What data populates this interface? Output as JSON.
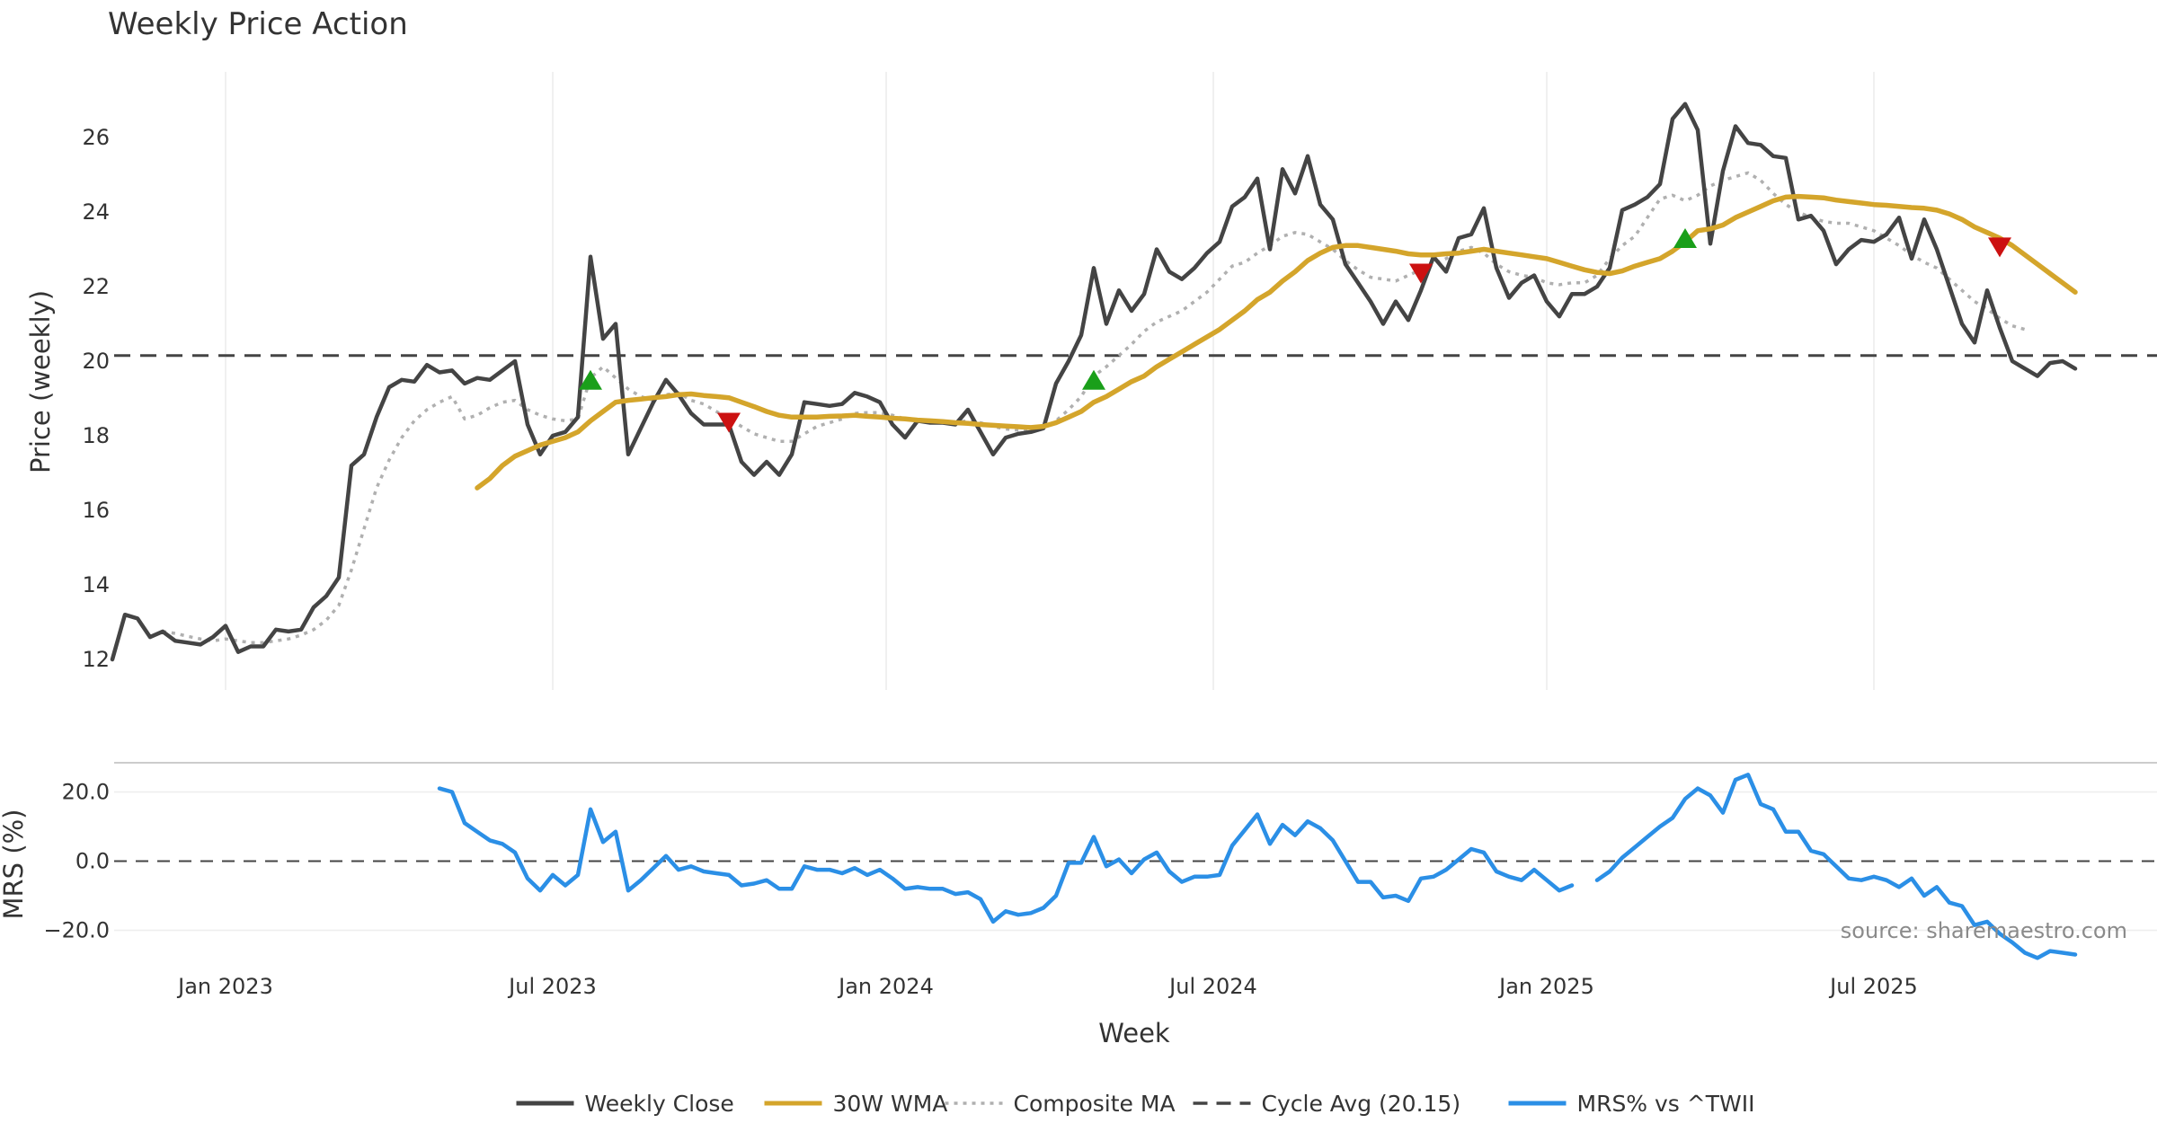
{
  "chart_data": [
    {
      "type": "line",
      "title": "Weekly Price Action",
      "ylabel": "Price (weekly)",
      "ylim": [
        11.7,
        27.6
      ],
      "yticks": [
        "12",
        "14",
        "16",
        "18",
        "20",
        "22",
        "24",
        "26"
      ],
      "series": [
        {
          "name": "Weekly Close",
          "color": "#444444",
          "values": [
            12.0,
            13.2,
            13.1,
            12.6,
            12.75,
            12.5,
            12.45,
            12.4,
            12.6,
            12.9,
            12.2,
            12.35,
            12.35,
            12.8,
            12.75,
            12.8,
            13.4,
            13.7,
            14.2,
            17.2,
            17.5,
            18.5,
            19.3,
            19.5,
            19.45,
            19.9,
            19.7,
            19.75,
            19.4,
            19.55,
            19.5,
            19.75,
            20.0,
            18.3,
            17.5,
            18.0,
            18.1,
            18.5,
            22.8,
            20.6,
            21.0,
            17.5,
            18.2,
            18.9,
            19.5,
            19.1,
            18.6,
            18.3,
            18.3,
            18.3,
            17.3,
            16.95,
            17.3,
            16.95,
            17.5,
            18.9,
            18.85,
            18.8,
            18.85,
            19.15,
            19.05,
            18.9,
            18.3,
            17.95,
            18.4,
            18.35,
            18.35,
            18.3,
            18.7,
            18.1,
            17.5,
            17.95,
            18.05,
            18.1,
            18.2,
            19.4,
            20.0,
            20.7,
            22.5,
            21.0,
            21.9,
            21.35,
            21.8,
            23.0,
            22.4,
            22.2,
            22.5,
            22.9,
            23.2,
            24.15,
            24.4,
            24.9,
            23.0,
            25.15,
            24.5,
            25.5,
            24.2,
            23.8,
            22.6,
            22.1,
            21.6,
            21.0,
            21.6,
            21.1,
            21.9,
            22.8,
            22.4,
            23.3,
            23.4,
            24.1,
            22.5,
            21.7,
            22.1,
            22.3,
            21.6,
            21.2,
            21.8,
            21.8,
            22.0,
            22.5,
            24.05,
            24.2,
            24.4,
            24.75,
            26.5,
            26.9,
            26.2,
            23.15,
            25.1,
            26.3,
            25.85,
            25.8,
            25.5,
            25.45,
            23.8,
            23.9,
            23.5,
            22.6,
            23.0,
            23.25,
            23.2,
            23.4,
            23.85,
            22.75,
            23.8,
            23.0,
            22.0,
            21.0,
            20.5,
            21.9,
            20.9,
            20.0,
            19.8,
            19.6,
            19.95,
            20.0,
            19.8
          ]
        },
        {
          "name": "30W WMA",
          "color": "#d4a52b",
          "values": [
            null,
            null,
            null,
            null,
            null,
            null,
            null,
            null,
            null,
            null,
            null,
            null,
            null,
            null,
            null,
            null,
            null,
            null,
            null,
            null,
            null,
            null,
            null,
            null,
            null,
            null,
            null,
            null,
            null,
            16.6,
            16.85,
            17.2,
            17.45,
            17.6,
            17.75,
            17.85,
            17.95,
            18.1,
            18.4,
            18.65,
            18.9,
            18.95,
            18.98,
            19.02,
            19.05,
            19.1,
            19.12,
            19.08,
            19.05,
            19.02,
            18.9,
            18.78,
            18.65,
            18.55,
            18.5,
            18.5,
            18.5,
            18.52,
            18.53,
            18.55,
            18.52,
            18.5,
            18.47,
            18.45,
            18.42,
            18.4,
            18.38,
            18.35,
            18.33,
            18.3,
            18.28,
            18.26,
            18.24,
            18.22,
            18.25,
            18.35,
            18.5,
            18.65,
            18.9,
            19.05,
            19.25,
            19.45,
            19.6,
            19.85,
            20.05,
            20.25,
            20.45,
            20.65,
            20.85,
            21.1,
            21.35,
            21.65,
            21.85,
            22.15,
            22.4,
            22.7,
            22.9,
            23.05,
            23.1,
            23.1,
            23.05,
            23.0,
            22.95,
            22.88,
            22.85,
            22.85,
            22.88,
            22.9,
            22.95,
            23.0,
            22.95,
            22.9,
            22.85,
            22.8,
            22.75,
            22.65,
            22.55,
            22.45,
            22.38,
            22.35,
            22.42,
            22.55,
            22.65,
            22.75,
            22.95,
            23.2,
            23.5,
            23.55,
            23.65,
            23.85,
            24.0,
            24.15,
            24.3,
            24.4,
            24.42,
            24.4,
            24.38,
            24.32,
            24.28,
            24.24,
            24.2,
            24.18,
            24.15,
            24.12,
            24.1,
            24.05,
            23.95,
            23.8,
            23.6,
            23.45,
            23.3,
            23.1,
            22.85,
            22.6,
            22.35,
            22.1,
            21.85
          ]
        },
        {
          "name": "Composite MA",
          "color": "#b0b0b0",
          "values": [
            null,
            null,
            null,
            null,
            12.75,
            12.7,
            12.62,
            12.55,
            12.5,
            12.55,
            12.5,
            12.45,
            12.45,
            12.5,
            12.55,
            12.65,
            12.8,
            13.05,
            13.45,
            14.4,
            15.5,
            16.6,
            17.35,
            17.95,
            18.4,
            18.7,
            18.9,
            19.05,
            18.45,
            18.55,
            18.75,
            18.9,
            18.95,
            18.7,
            18.55,
            18.45,
            18.4,
            18.45,
            19.55,
            19.85,
            19.55,
            19.25,
            19.05,
            18.95,
            19.1,
            19.15,
            18.95,
            18.85,
            18.65,
            18.45,
            18.25,
            18.05,
            17.95,
            17.85,
            17.85,
            18.05,
            18.25,
            18.35,
            18.45,
            18.6,
            18.62,
            18.62,
            18.55,
            18.45,
            18.42,
            18.4,
            18.38,
            18.36,
            18.4,
            18.35,
            18.25,
            18.18,
            18.15,
            18.15,
            18.2,
            18.4,
            18.7,
            19.05,
            19.6,
            19.85,
            20.15,
            20.45,
            20.8,
            21.05,
            21.2,
            21.35,
            21.6,
            21.85,
            22.2,
            22.55,
            22.65,
            22.9,
            23.1,
            23.35,
            23.45,
            23.4,
            23.2,
            23.0,
            22.7,
            22.45,
            22.25,
            22.2,
            22.15,
            22.3,
            22.45,
            22.6,
            22.75,
            22.95,
            23.05,
            22.9,
            22.6,
            22.4,
            22.3,
            22.25,
            22.1,
            22.05,
            22.1,
            22.1,
            22.3,
            22.75,
            23.1,
            23.35,
            23.85,
            24.35,
            24.45,
            24.3,
            24.45,
            24.7,
            24.85,
            24.95,
            25.05,
            24.85,
            24.5,
            24.2,
            24.0,
            23.85,
            23.75,
            23.7,
            23.7,
            23.6,
            23.5,
            23.3,
            23.1,
            22.85,
            22.65,
            22.5,
            22.2,
            21.9,
            21.6,
            21.4,
            21.15,
            20.95,
            20.85
          ]
        }
      ],
      "reference_line": {
        "name": "Cycle Avg (20.15)",
        "value": 20.15,
        "color": "#444444"
      },
      "markers": [
        {
          "type": "buy",
          "x": 38,
          "y": 19.5,
          "color": "#1a9f1a"
        },
        {
          "type": "sell",
          "x": 49,
          "y": 18.35,
          "color": "#cc1111"
        },
        {
          "type": "buy",
          "x": 78,
          "y": 19.5,
          "color": "#1a9f1a"
        },
        {
          "type": "sell",
          "x": 104,
          "y": 22.35,
          "color": "#cc1111"
        },
        {
          "type": "buy",
          "x": 125,
          "y": 23.3,
          "color": "#1a9f1a"
        },
        {
          "type": "sell",
          "x": 150,
          "y": 23.05,
          "color": "#cc1111"
        }
      ]
    },
    {
      "type": "line",
      "ylabel": "MRS (%)",
      "xlabel": "Week",
      "ylim": [
        -29,
        27
      ],
      "yticks": [
        "20.0",
        "0.0",
        "−20.0"
      ],
      "xticks": [
        {
          "week": 9,
          "label": "Jan 2023"
        },
        {
          "week": 35,
          "label": "Jul 2023"
        },
        {
          "week": 61.5,
          "label": "Jan 2024"
        },
        {
          "week": 87.5,
          "label": "Jul 2024"
        },
        {
          "week": 114,
          "label": "Jan 2025"
        },
        {
          "week": 140,
          "label": "Jul 2025"
        }
      ],
      "zero_line": 0,
      "series": [
        {
          "name": "MRS% vs ^TWII",
          "color": "#2b8fe6",
          "values": [
            null,
            null,
            null,
            null,
            null,
            null,
            null,
            null,
            null,
            null,
            null,
            null,
            null,
            null,
            null,
            null,
            null,
            null,
            null,
            null,
            null,
            null,
            null,
            null,
            null,
            null,
            21.0,
            20.0,
            11.0,
            8.5,
            6.0,
            5.0,
            2.5,
            -5.0,
            -8.5,
            -4.0,
            -7.0,
            -4.0,
            15.0,
            5.5,
            8.5,
            -8.5,
            -5.5,
            -2.0,
            1.5,
            -2.5,
            -1.5,
            -3.0,
            -3.5,
            -4.0,
            -7.0,
            -6.5,
            -5.5,
            -8.0,
            -8.0,
            -1.5,
            -2.5,
            -2.5,
            -3.5,
            -2.0,
            -4.0,
            -2.5,
            -5.0,
            -8.0,
            -7.5,
            -8.0,
            -8.0,
            -9.5,
            -9.0,
            -11.0,
            -17.5,
            -14.5,
            -15.5,
            -15.0,
            -13.5,
            -10.0,
            -0.5,
            -0.5,
            7.0,
            -1.5,
            0.5,
            -3.5,
            0.5,
            2.5,
            -3.0,
            -6.0,
            -4.5,
            -4.5,
            -4.0,
            4.5,
            9.0,
            13.5,
            5.0,
            10.5,
            7.5,
            11.5,
            9.5,
            6.0,
            0.0,
            -6.0,
            -6.0,
            -10.5,
            -10.0,
            -11.5,
            -5.0,
            -4.5,
            -2.5,
            0.5,
            3.5,
            2.5,
            -3.0,
            -4.5,
            -5.5,
            -2.5,
            -5.5,
            -8.5,
            -7.0,
            null,
            -5.5,
            -3.0,
            1.0,
            4.0,
            7.0,
            10.0,
            12.5,
            18.0,
            21.0,
            19.0,
            14.0,
            23.5,
            25.0,
            16.5,
            15.0,
            8.5,
            8.5,
            3.0,
            2.0,
            -1.5,
            -5.0,
            -5.5,
            -4.5,
            -5.5,
            -7.5,
            -5.0,
            -10.0,
            -7.5,
            -12.0,
            -13.0,
            -18.5,
            -17.5,
            -21.0,
            -23.5,
            -26.5,
            -28.0,
            -26.0,
            -26.5,
            -27.0
          ]
        }
      ]
    }
  ],
  "annotations": {
    "source": "source: sharemaestro.com"
  },
  "legend": {
    "position": "bottom-center",
    "entries": [
      {
        "name": "Weekly Close",
        "style": "solid",
        "color": "#444444"
      },
      {
        "name": "30W WMA",
        "style": "solid",
        "color": "#d4a52b"
      },
      {
        "name": "Composite MA",
        "style": "dotted",
        "color": "#b0b0b0"
      },
      {
        "name": "Cycle Avg (20.15)",
        "style": "dashed",
        "color": "#444444"
      },
      {
        "name": "MRS% vs ^TWII",
        "style": "solid",
        "color": "#2b8fe6"
      }
    ]
  }
}
